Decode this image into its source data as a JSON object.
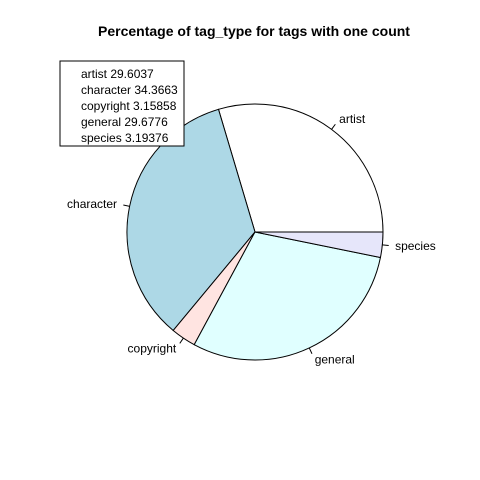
{
  "chart_data": {
    "type": "pie",
    "title": "Percentage of tag_type for tags with one count",
    "categories": [
      "artist",
      "character",
      "copyright",
      "general",
      "species"
    ],
    "values": [
      29.6037,
      34.3663,
      3.15858,
      29.6776,
      3.19376
    ],
    "colors": [
      "#ffffff",
      "#add8e6",
      "#ffe4e1",
      "#e0ffff",
      "#e6e6fa"
    ],
    "start_angle_deg": 0,
    "direction": "counterclockwise",
    "legend": {
      "position": "top-left",
      "entries": [
        "artist 29.6037",
        "character 34.3663",
        "copyright 3.15858",
        "general 29.6776",
        "species 3.19376"
      ]
    }
  }
}
